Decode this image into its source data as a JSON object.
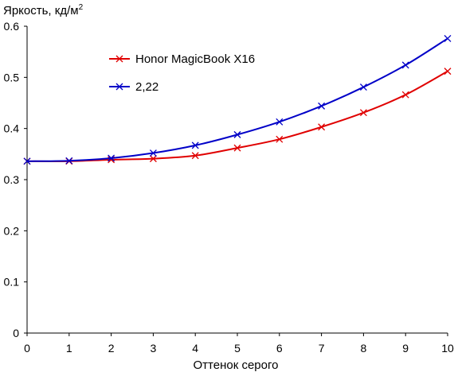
{
  "chart_data": {
    "type": "line",
    "title": "",
    "ylabel_main": "Яркость, кд/м",
    "ylabel_sup": "2",
    "xlabel": "Оттенок серого",
    "x": [
      0,
      1,
      2,
      3,
      4,
      5,
      6,
      7,
      8,
      9,
      10
    ],
    "xlim": [
      0,
      10
    ],
    "ylim": [
      0,
      0.6
    ],
    "xticks": [
      "0",
      "1",
      "2",
      "3",
      "4",
      "5",
      "6",
      "7",
      "8",
      "9",
      "10"
    ],
    "yticks": [
      "0",
      "0.1",
      "0.2",
      "0.3",
      "0.4",
      "0.5",
      "0.6"
    ],
    "grid": false,
    "legend_position": "top-center",
    "series": [
      {
        "name": "Honor MagicBook X16",
        "color": "#e00000",
        "marker": "x",
        "values": [
          0.336,
          0.336,
          0.339,
          0.341,
          0.347,
          0.362,
          0.379,
          0.403,
          0.431,
          0.466,
          0.512
        ]
      },
      {
        "name": "2,22",
        "color": "#0000c8",
        "marker": "x",
        "values": [
          0.336,
          0.337,
          0.342,
          0.352,
          0.367,
          0.388,
          0.413,
          0.444,
          0.481,
          0.524,
          0.576
        ]
      }
    ]
  }
}
